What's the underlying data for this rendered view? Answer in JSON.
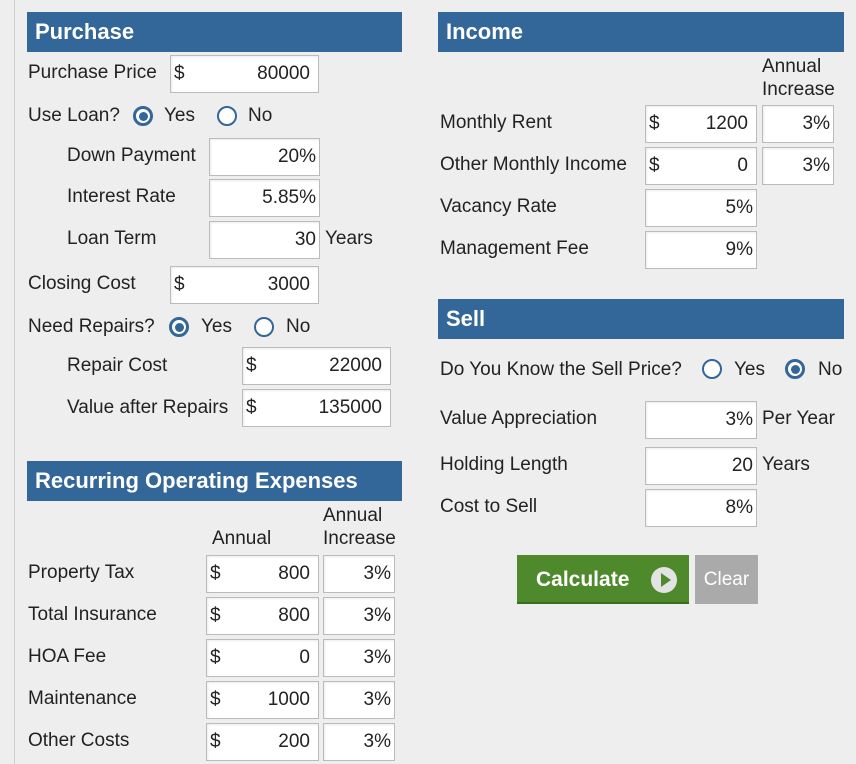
{
  "purchase": {
    "title": "Purchase",
    "purchase_price": {
      "label": "Purchase Price",
      "currency": "$",
      "value": "80000"
    },
    "use_loan": {
      "label": "Use Loan?",
      "yes": "Yes",
      "no": "No",
      "selected": "yes"
    },
    "down_payment": {
      "label": "Down Payment",
      "value": "20%"
    },
    "interest_rate": {
      "label": "Interest Rate",
      "value": "5.85%"
    },
    "loan_term": {
      "label": "Loan Term",
      "value": "30",
      "unit": "Years"
    },
    "closing_cost": {
      "label": "Closing Cost",
      "currency": "$",
      "value": "3000"
    },
    "need_repairs": {
      "label": "Need Repairs?",
      "yes": "Yes",
      "no": "No",
      "selected": "yes"
    },
    "repair_cost": {
      "label": "Repair Cost",
      "currency": "$",
      "value": "22000"
    },
    "value_after_repairs": {
      "label": "Value after Repairs",
      "currency": "$",
      "value": "135000"
    }
  },
  "expenses": {
    "title": "Recurring Operating Expenses",
    "col_annual": "Annual",
    "col_increase_1": "Annual",
    "col_increase_2": "Increase",
    "rows": [
      {
        "label": "Property Tax",
        "currency": "$",
        "value": "800",
        "increase": "3%"
      },
      {
        "label": "Total Insurance",
        "currency": "$",
        "value": "800",
        "increase": "3%"
      },
      {
        "label": "HOA Fee",
        "currency": "$",
        "value": "0",
        "increase": "3%"
      },
      {
        "label": "Maintenance",
        "currency": "$",
        "value": "1000",
        "increase": "3%"
      },
      {
        "label": "Other Costs",
        "currency": "$",
        "value": "200",
        "increase": "3%"
      }
    ]
  },
  "income": {
    "title": "Income",
    "col_increase_1": "Annual",
    "col_increase_2": "Increase",
    "monthly_rent": {
      "label": "Monthly Rent",
      "currency": "$",
      "value": "1200",
      "increase": "3%"
    },
    "other_income": {
      "label": "Other Monthly Income",
      "currency": "$",
      "value": "0",
      "increase": "3%"
    },
    "vacancy_rate": {
      "label": "Vacancy Rate",
      "value": "5%"
    },
    "management_fee": {
      "label": "Management Fee",
      "value": "9%"
    }
  },
  "sell": {
    "title": "Sell",
    "know_price": {
      "label": "Do You Know the Sell Price?",
      "yes": "Yes",
      "no": "No",
      "selected": "no"
    },
    "value_appreciation": {
      "label": "Value Appreciation",
      "value": "3%",
      "unit": "Per Year"
    },
    "holding_length": {
      "label": "Holding Length",
      "value": "20",
      "unit": "Years"
    },
    "cost_to_sell": {
      "label": "Cost to Sell",
      "value": "8%"
    }
  },
  "actions": {
    "calculate": "Calculate",
    "clear": "Clear"
  },
  "colors": {
    "header": "#336699",
    "calculate": "#4e8a2b",
    "clear": "#aaaaaa"
  },
  "icons": {
    "calculate": "play-circle-icon"
  }
}
